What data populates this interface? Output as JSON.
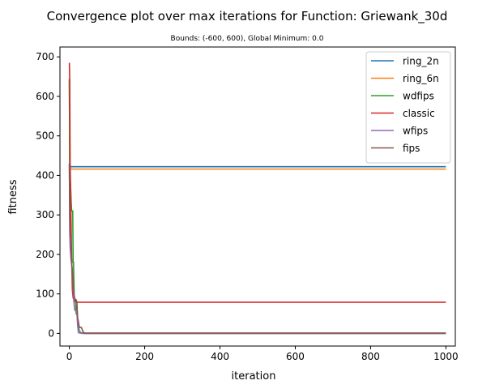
{
  "chart_data": {
    "type": "line",
    "title": "Convergence plot over max iterations for Function: Griewank_30d",
    "subtitle": "Bounds: (-600, 600), Global Minimum: 0.0",
    "xlabel": "iteration",
    "ylabel": "fitness",
    "xlim": [
      -25,
      1025
    ],
    "ylim": [
      -32,
      725
    ],
    "xticks": [
      0,
      200,
      400,
      600,
      800,
      1000
    ],
    "yticks": [
      0,
      100,
      200,
      300,
      400,
      500,
      600,
      700
    ],
    "grid": false,
    "legend_position": "top-right",
    "series": [
      {
        "name": "ring_2n",
        "color": "#1f77b4",
        "x": [
          0,
          1,
          2,
          3,
          1000
        ],
        "y": [
          645,
          430,
          424,
          422,
          422
        ]
      },
      {
        "name": "ring_6n",
        "color": "#ff7f0e",
        "x": [
          0,
          1,
          2,
          3,
          1000
        ],
        "y": [
          645,
          425,
          418,
          416,
          416
        ]
      },
      {
        "name": "wdfips",
        "color": "#2ca02c",
        "x": [
          0,
          1,
          2,
          3,
          5,
          6,
          7,
          9,
          10,
          11,
          13,
          14,
          15,
          17,
          18,
          20,
          22,
          26,
          30,
          35,
          40,
          1000
        ],
        "y": [
          640,
          430,
          380,
          380,
          330,
          310,
          310,
          310,
          180,
          180,
          90,
          90,
          80,
          80,
          50,
          50,
          30,
          8,
          2,
          1,
          0,
          0
        ]
      },
      {
        "name": "classic",
        "color": "#d62728",
        "x": [
          0,
          1,
          2,
          3,
          5,
          6,
          8,
          10,
          12,
          15,
          18,
          20,
          1000
        ],
        "y": [
          685,
          640,
          430,
          380,
          250,
          190,
          110,
          90,
          85,
          83,
          81,
          79,
          79
        ]
      },
      {
        "name": "wfips",
        "color": "#9467bd",
        "x": [
          0,
          1,
          2,
          4,
          6,
          8,
          10,
          12,
          14,
          18,
          20,
          22,
          24,
          28,
          35,
          40,
          1000
        ],
        "y": [
          430,
          260,
          220,
          190,
          175,
          150,
          110,
          80,
          60,
          55,
          55,
          20,
          2,
          1,
          0,
          0,
          0
        ]
      },
      {
        "name": "fips",
        "color": "#8c564b",
        "x": [
          0,
          1,
          2,
          4,
          6,
          8,
          10,
          12,
          14,
          16,
          18,
          20,
          22,
          24,
          26,
          28,
          32,
          36,
          40,
          1000
        ],
        "y": [
          430,
          300,
          250,
          240,
          180,
          160,
          120,
          100,
          90,
          85,
          85,
          80,
          40,
          30,
          18,
          15,
          15,
          5,
          1,
          1
        ]
      }
    ]
  }
}
